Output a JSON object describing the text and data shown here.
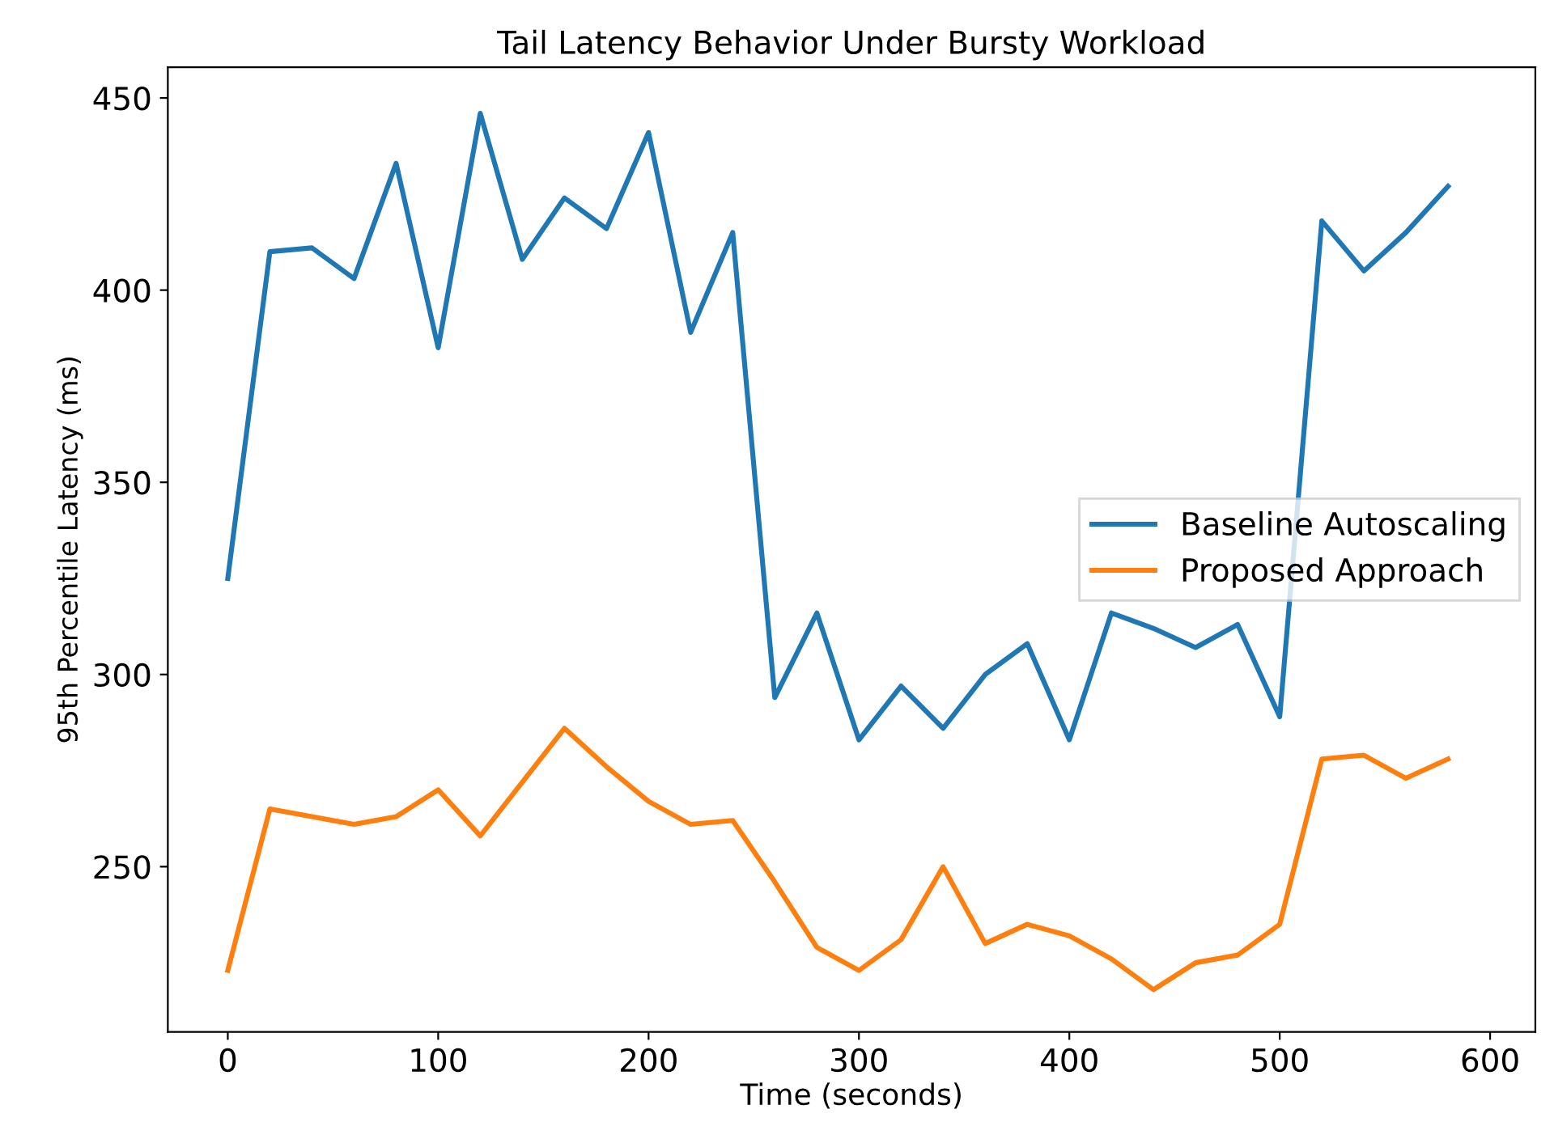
{
  "chart_data": {
    "type": "line",
    "title": "Tail Latency Behavior Under Bursty Workload",
    "xlabel": "Time (seconds)",
    "ylabel": "95th Percentile Latency (ms)",
    "x": [
      0,
      20,
      40,
      60,
      80,
      100,
      120,
      140,
      160,
      180,
      200,
      220,
      240,
      260,
      280,
      300,
      320,
      340,
      360,
      380,
      400,
      420,
      440,
      460,
      480,
      500,
      520,
      540,
      560,
      580
    ],
    "series": [
      {
        "name": "Baseline Autoscaling",
        "color": "#1f77b4",
        "values": [
          325,
          410,
          411,
          403,
          433,
          385,
          446,
          408,
          424,
          416,
          441,
          389,
          415,
          294,
          316,
          283,
          297,
          286,
          300,
          308,
          283,
          316,
          312,
          307,
          313,
          289,
          418,
          405,
          415,
          427
        ]
      },
      {
        "name": "Proposed Approach",
        "color": "#ff7f0e",
        "values": [
          223,
          265,
          263,
          261,
          263,
          270,
          258,
          272,
          286,
          276,
          267,
          261,
          262,
          246,
          229,
          223,
          231,
          250,
          230,
          235,
          232,
          226,
          218,
          225,
          227,
          235,
          278,
          279,
          273,
          278
        ]
      }
    ],
    "xlim": [
      -28.5,
      621.5
    ],
    "ylim": [
      207,
      458
    ],
    "xticks": [
      0,
      100,
      200,
      300,
      400,
      500,
      600
    ],
    "yticks": [
      250,
      300,
      350,
      400,
      450
    ],
    "grid": false,
    "legend": "center right",
    "line_style": "solid",
    "marker": "none"
  }
}
